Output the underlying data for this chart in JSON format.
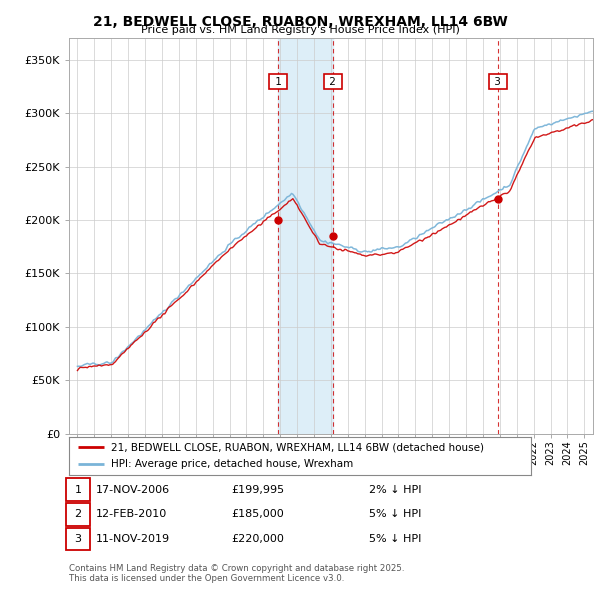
{
  "title": "21, BEDWELL CLOSE, RUABON, WREXHAM, LL14 6BW",
  "subtitle": "Price paid vs. HM Land Registry's House Price Index (HPI)",
  "legend_line1": "21, BEDWELL CLOSE, RUABON, WREXHAM, LL14 6BW (detached house)",
  "legend_line2": "HPI: Average price, detached house, Wrexham",
  "transactions": [
    {
      "num": 1,
      "date": "17-NOV-2006",
      "price": "£199,995",
      "rel": "2% ↓ HPI",
      "year": 2006.88,
      "price_val": 199995
    },
    {
      "num": 2,
      "date": "12-FEB-2010",
      "price": "£185,000",
      "rel": "5% ↓ HPI",
      "year": 2010.12,
      "price_val": 185000
    },
    {
      "num": 3,
      "date": "11-NOV-2019",
      "price": "£220,000",
      "rel": "5% ↓ HPI",
      "year": 2019.87,
      "price_val": 220000
    }
  ],
  "footer": "Contains HM Land Registry data © Crown copyright and database right 2025.\nThis data is licensed under the Open Government Licence v3.0.",
  "hpi_color": "#7ab4d8",
  "price_color": "#cc0000",
  "vline_color": "#cc0000",
  "shade_color": "#ddeef8",
  "ylim": [
    0,
    370000
  ],
  "xlim": [
    1994.5,
    2025.5
  ],
  "yticks": [
    0,
    50000,
    100000,
    150000,
    200000,
    250000,
    300000,
    350000
  ],
  "ytick_labels": [
    "£0",
    "£50K",
    "£100K",
    "£150K",
    "£200K",
    "£250K",
    "£300K",
    "£350K"
  ],
  "background_color": "#ffffff",
  "grid_color": "#cccccc"
}
